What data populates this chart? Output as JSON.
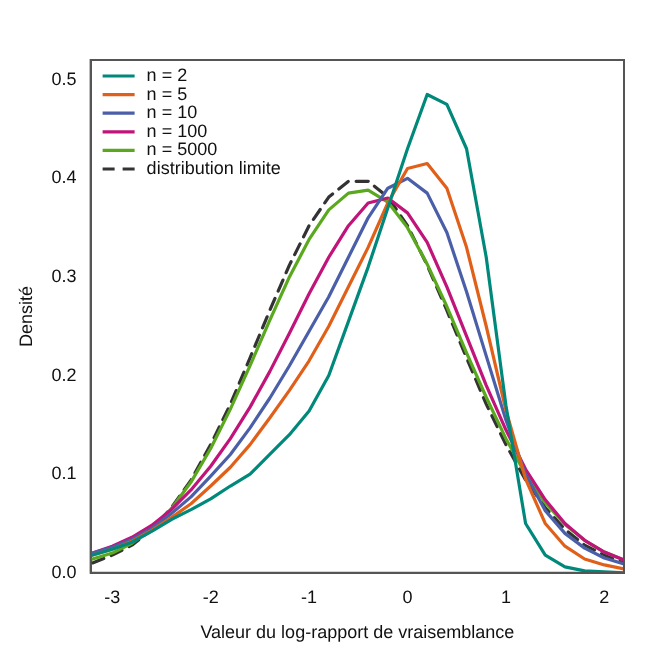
{
  "chart_data": {
    "type": "line",
    "xlabel": "Valeur du log-rapport de vraisemblance",
    "ylabel": "Densité",
    "x": [
      -3.2,
      -3.0,
      -2.8,
      -2.6,
      -2.4,
      -2.2,
      -2.0,
      -1.8,
      -1.6,
      -1.4,
      -1.2,
      -1.0,
      -0.8,
      -0.6,
      -0.4,
      -0.2,
      0,
      0.2,
      0.4,
      0.6,
      0.8,
      1.0,
      1.2,
      1.4,
      1.6,
      1.8,
      2.0,
      2.2
    ],
    "xlim": [
      -3.22,
      2.2
    ],
    "xticks": [
      -3,
      -2,
      -1,
      0,
      1,
      2
    ],
    "ylim": [
      0,
      0.52
    ],
    "yticks": [
      {
        "value": 0,
        "label": "0.0"
      },
      0.1,
      0.2,
      0.3,
      0.4,
      0.5
    ],
    "grid": false,
    "legend": "top left",
    "marker": "none",
    "line_style": "solid",
    "series": [
      {
        "name": "n = 2",
        "color": "#00897b",
        "values": [
          0.018,
          0.024,
          0.031,
          0.042,
          0.054,
          0.064,
          0.075,
          0.088,
          0.1,
          0.12,
          0.14,
          0.164,
          0.2,
          0.255,
          0.31,
          0.37,
          0.43,
          0.485,
          0.475,
          0.43,
          0.32,
          0.17,
          0.05,
          0.018,
          0.006,
          0.002,
          0.001,
          0
        ]
      },
      {
        "name": "n = 5",
        "color": "#e0601a",
        "values": [
          0.018,
          0.024,
          0.032,
          0.043,
          0.056,
          0.07,
          0.088,
          0.107,
          0.13,
          0.157,
          0.185,
          0.215,
          0.25,
          0.29,
          0.33,
          0.375,
          0.41,
          0.415,
          0.39,
          0.33,
          0.25,
          0.165,
          0.095,
          0.05,
          0.027,
          0.014,
          0.008,
          0.004
        ]
      },
      {
        "name": "n = 10",
        "color": "#4a5fa8",
        "values": [
          0.02,
          0.026,
          0.034,
          0.045,
          0.06,
          0.077,
          0.098,
          0.12,
          0.147,
          0.177,
          0.21,
          0.245,
          0.28,
          0.32,
          0.36,
          0.39,
          0.4,
          0.385,
          0.345,
          0.285,
          0.22,
          0.155,
          0.1,
          0.063,
          0.04,
          0.025,
          0.015,
          0.009
        ]
      },
      {
        "name": "n = 100",
        "color": "#c0147a",
        "values": [
          0.02,
          0.027,
          0.036,
          0.048,
          0.064,
          0.084,
          0.108,
          0.136,
          0.168,
          0.204,
          0.243,
          0.283,
          0.32,
          0.352,
          0.375,
          0.38,
          0.365,
          0.335,
          0.29,
          0.24,
          0.19,
          0.145,
          0.105,
          0.074,
          0.05,
          0.033,
          0.021,
          0.013
        ]
      },
      {
        "name": "n = 5000",
        "color": "#5aa81e",
        "values": [
          0.014,
          0.02,
          0.03,
          0.045,
          0.065,
          0.092,
          0.126,
          0.166,
          0.21,
          0.256,
          0.3,
          0.338,
          0.368,
          0.385,
          0.388,
          0.376,
          0.35,
          0.313,
          0.27,
          0.223,
          0.178,
          0.136,
          0.1,
          0.071,
          0.049,
          0.033,
          0.021,
          0.013
        ]
      },
      {
        "name": "distribution limite",
        "color": "#333333",
        "line_style": "dashed",
        "values": [
          0.01,
          0.018,
          0.028,
          0.044,
          0.066,
          0.094,
          0.13,
          0.171,
          0.218,
          0.266,
          0.312,
          0.352,
          0.381,
          0.397,
          0.397,
          0.381,
          0.352,
          0.312,
          0.266,
          0.218,
          0.171,
          0.13,
          0.094,
          0.066,
          0.044,
          0.028,
          0.018,
          0.01
        ]
      }
    ]
  }
}
